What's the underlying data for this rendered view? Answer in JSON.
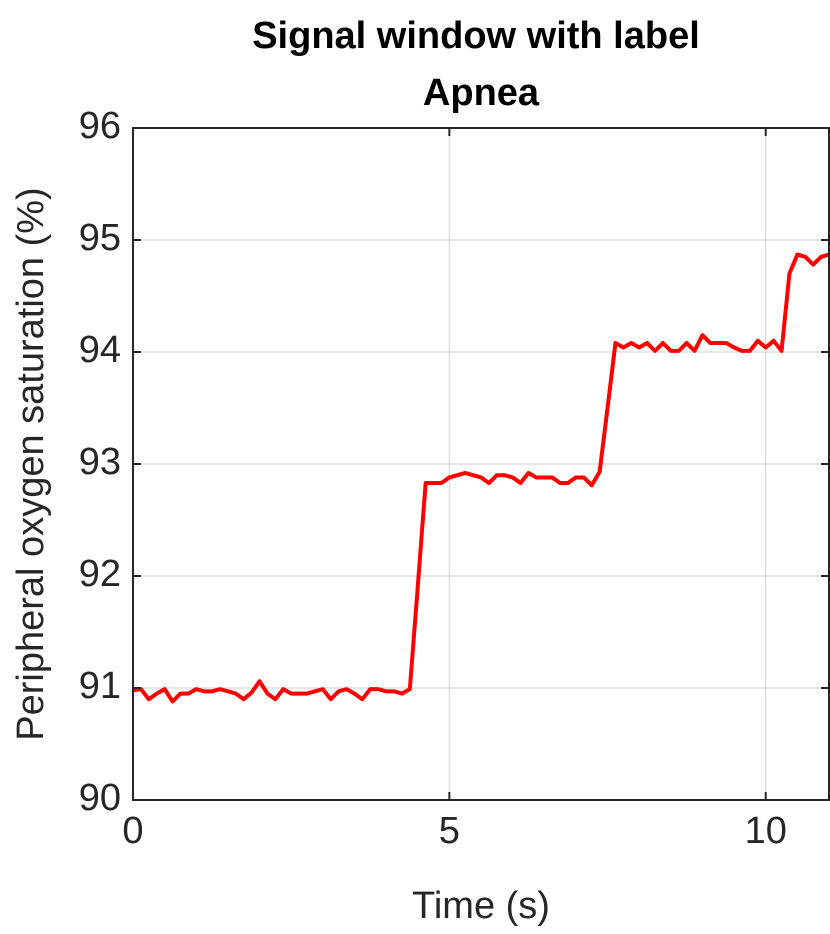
{
  "chart_data": {
    "type": "line",
    "title": [
      "Signal window with label",
      "Apnea"
    ],
    "xlabel": "Time (s)",
    "ylabel": "Peripheral oxygen saturation (%)",
    "xlim": [
      0,
      11
    ],
    "ylim": [
      90,
      96
    ],
    "xticks": [
      0,
      5,
      10
    ],
    "yticks": [
      90,
      91,
      92,
      93,
      94,
      95,
      96
    ],
    "grid": true,
    "x": [
      0,
      0.125,
      0.25,
      0.375,
      0.5,
      0.625,
      0.75,
      0.875,
      1,
      1.125,
      1.25,
      1.375,
      1.5,
      1.625,
      1.75,
      1.875,
      2,
      2.125,
      2.25,
      2.375,
      2.5,
      2.625,
      2.75,
      2.875,
      3,
      3.125,
      3.25,
      3.375,
      3.5,
      3.625,
      3.75,
      3.875,
      4,
      4.125,
      4.25,
      4.375,
      4.5,
      4.625,
      4.75,
      4.875,
      5,
      5.125,
      5.25,
      5.375,
      5.5,
      5.625,
      5.75,
      5.875,
      6,
      6.125,
      6.25,
      6.375,
      6.5,
      6.625,
      6.75,
      6.875,
      7,
      7.125,
      7.25,
      7.375,
      7.5,
      7.625,
      7.75,
      7.875,
      8,
      8.125,
      8.25,
      8.375,
      8.5,
      8.625,
      8.75,
      8.875,
      9,
      9.125,
      9.25,
      9.375,
      9.5,
      9.625,
      9.75,
      9.875,
      10,
      10.125,
      10.25,
      10.375,
      10.5,
      10.625,
      10.75,
      10.875,
      11
    ],
    "series": [
      {
        "color": "#ff0000",
        "values": [
          90.98,
          90.99,
          90.9,
          90.95,
          90.99,
          90.88,
          90.95,
          90.95,
          90.99,
          90.97,
          90.97,
          90.99,
          90.97,
          90.95,
          90.9,
          90.96,
          91.06,
          90.95,
          90.9,
          90.99,
          90.95,
          90.95,
          90.95,
          90.97,
          90.99,
          90.9,
          90.97,
          90.99,
          90.95,
          90.9,
          90.99,
          90.99,
          90.97,
          90.97,
          90.95,
          90.99,
          91.9,
          92.83,
          92.83,
          92.83,
          92.88,
          92.9,
          92.92,
          92.9,
          92.88,
          92.83,
          92.9,
          92.9,
          92.88,
          92.83,
          92.92,
          92.88,
          92.88,
          92.88,
          92.83,
          92.83,
          92.88,
          92.88,
          92.81,
          92.93,
          93.5,
          94.08,
          94.04,
          94.08,
          94.04,
          94.08,
          94.01,
          94.08,
          94.01,
          94.01,
          94.08,
          94.01,
          94.15,
          94.08,
          94.08,
          94.08,
          94.04,
          94.01,
          94.01,
          94.1,
          94.04,
          94.1,
          94.01,
          94.7,
          94.87,
          94.85,
          94.78,
          94.85,
          94.87
        ]
      }
    ]
  }
}
